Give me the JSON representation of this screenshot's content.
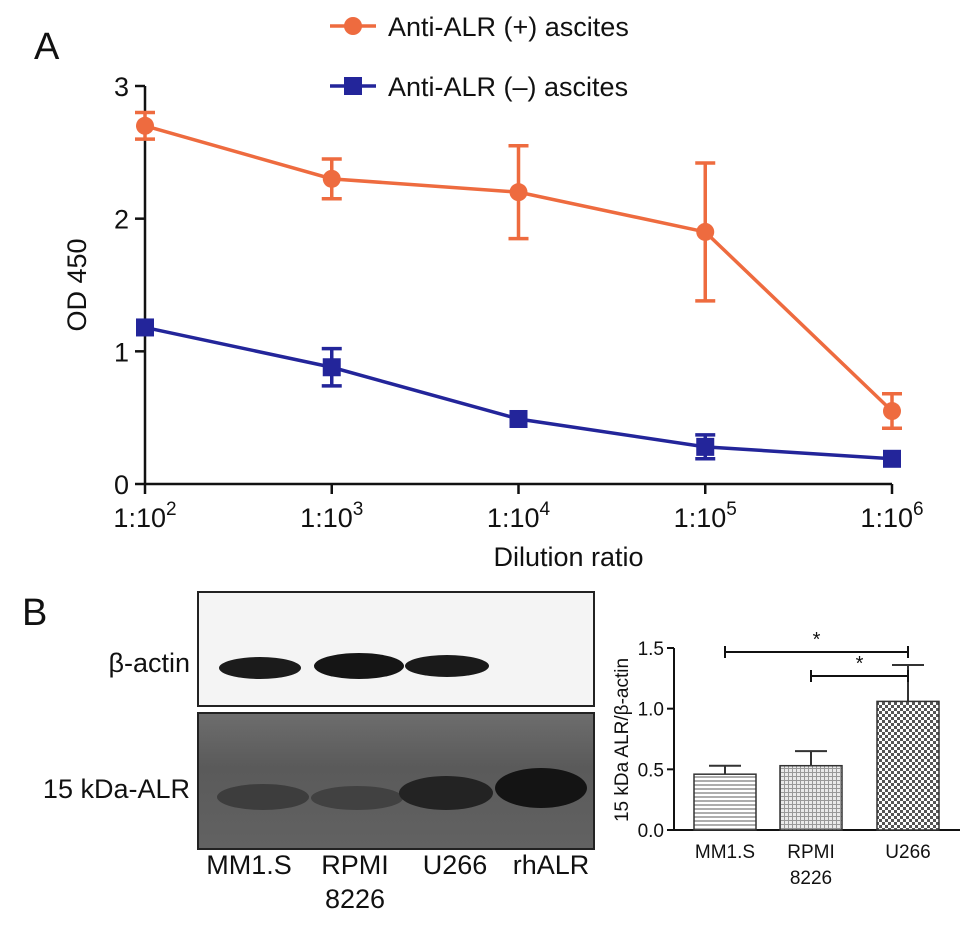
{
  "panel_a": {
    "label": "A"
  },
  "panel_b": {
    "label": "B",
    "blot": {
      "row_labels": [
        "β-actin",
        "15 kDa-ALR"
      ],
      "lanes": [
        "MM1.S",
        "RPMI\n8226",
        "U266",
        "rhALR"
      ]
    },
    "significance": [
      "*",
      "*"
    ]
  },
  "chart_data": [
    {
      "type": "line",
      "panel": "A",
      "xlabel": "Dilution ratio",
      "ylabel": "OD 450",
      "categories": [
        "1:10^2",
        "1:10^3",
        "1:10^4",
        "1:10^5",
        "1:10^6"
      ],
      "tick_labels": [
        {
          "base": "1:10",
          "exp": "2"
        },
        {
          "base": "1:10",
          "exp": "3"
        },
        {
          "base": "1:10",
          "exp": "4"
        },
        {
          "base": "1:10",
          "exp": "5"
        },
        {
          "base": "1:10",
          "exp": "6"
        }
      ],
      "ylim": [
        0,
        3
      ],
      "yticks": [
        0,
        1,
        2,
        3
      ],
      "legend_position": "top",
      "series": [
        {
          "name": "Anti-ALR (+) ascites",
          "color": "#ee6b3f",
          "marker": "circle",
          "values": [
            2.7,
            2.3,
            2.2,
            1.9,
            0.55
          ],
          "errors": [
            0.1,
            0.15,
            0.35,
            0.52,
            0.13
          ]
        },
        {
          "name": "Anti-ALR (–) ascites",
          "color": "#23259a",
          "marker": "square",
          "values": [
            1.18,
            0.88,
            0.49,
            0.28,
            0.19
          ],
          "errors": [
            0.0,
            0.14,
            0.0,
            0.09,
            0.0
          ]
        }
      ]
    },
    {
      "type": "bar",
      "panel": "B",
      "ylabel": "15 kDa ALR/β-actin",
      "categories": [
        "MM1.S",
        "RPMI\n8226",
        "U266"
      ],
      "values": [
        0.46,
        0.53,
        1.06
      ],
      "errors": [
        0.07,
        0.12,
        0.3
      ],
      "ylim": [
        0,
        1.5
      ],
      "yticks": [
        "0.0",
        "0.5",
        "1.0",
        "1.5"
      ],
      "patterns": [
        "horizontal-lines",
        "grid",
        "checker"
      ],
      "comparisons": [
        {
          "from": 0,
          "to": 2,
          "label": "*"
        },
        {
          "from": 1,
          "to": 2,
          "label": "*"
        }
      ]
    }
  ]
}
